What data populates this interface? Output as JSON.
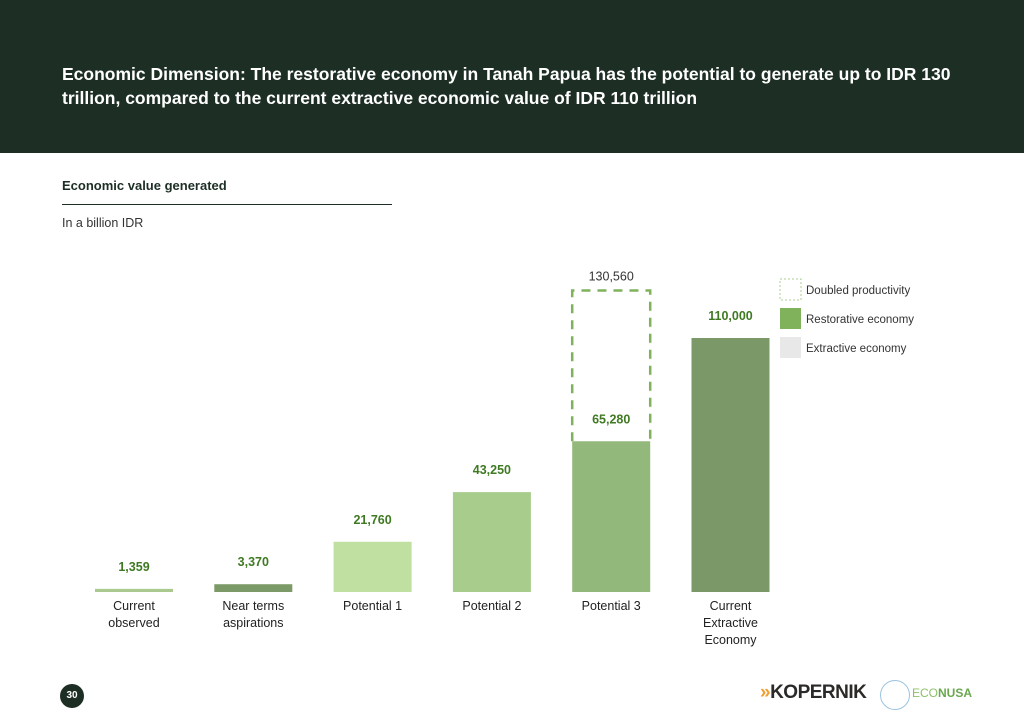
{
  "title": "Economic Dimension: The restorative economy in Tanah Papua has the potential to generate up to IDR 130 trillion, compared to the current extractive economic value of IDR 110 trillion",
  "subtitle": "Economic value generated",
  "unit_label": "In a billion IDR",
  "page_number": "30",
  "logos": {
    "kopernik": "KOPERNIK",
    "econusa": "ECONUSA"
  },
  "chart_data": {
    "type": "bar",
    "title": "Economic value generated",
    "ylabel": "In a billion IDR",
    "categories": [
      [
        "Current",
        "observed"
      ],
      [
        "Near terms",
        "aspirations"
      ],
      [
        "Potential 1"
      ],
      [
        "Potential 2"
      ],
      [
        "Potential 3"
      ],
      [
        "Current",
        "Extractive",
        "Economy"
      ]
    ],
    "values": [
      1359,
      3370,
      21760,
      43250,
      65280,
      110000
    ],
    "labels": [
      "1,359",
      "3,370",
      "21,760",
      "43,250",
      "65,280",
      "110,000"
    ],
    "colors": [
      "#a9c98f",
      "#7c9a68",
      "#bfe0a0",
      "#a7cc8b",
      "#93b87b",
      "#7b9868"
    ],
    "doubled": {
      "index": 4,
      "value": 130560,
      "label": "130,560"
    },
    "ylim": [
      0,
      130560
    ],
    "grid": false,
    "legend": {
      "position": "top-right",
      "entries": [
        {
          "label": "Doubled productivity",
          "style": "dashed"
        },
        {
          "label": "Restorative economy",
          "color": "#7fb25a"
        },
        {
          "label": "Extractive economy",
          "color": "#e8e8e8"
        }
      ]
    }
  }
}
